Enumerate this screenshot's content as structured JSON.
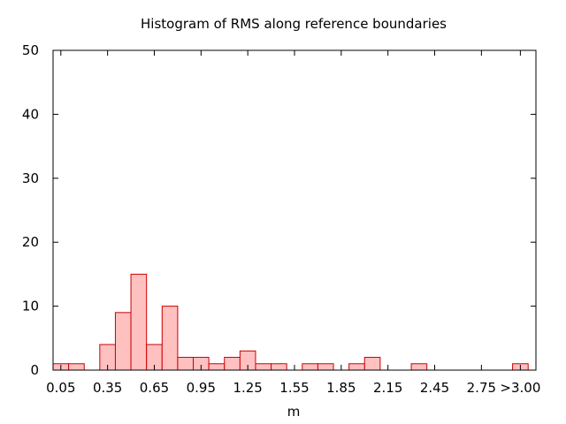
{
  "chart_data": {
    "type": "bar",
    "title": "Histogram of RMS along reference boundaries",
    "xlabel": "m",
    "ylabel": "",
    "ylim": [
      0,
      50
    ],
    "yticks": [
      0,
      10,
      20,
      30,
      40,
      50
    ],
    "xlim": [
      0,
      3.1
    ],
    "bin_width": 0.1,
    "xtick_values": [
      0.05,
      0.35,
      0.65,
      0.95,
      1.25,
      1.55,
      1.85,
      2.15,
      2.45,
      2.75,
      3.0
    ],
    "xtick_labels": [
      "0.05",
      "0.35",
      "0.65",
      "0.95",
      "1.25",
      "1.55",
      "1.85",
      "2.15",
      "2.45",
      "2.75",
      ">3.00"
    ],
    "bin_centers": [
      0.05,
      0.15,
      0.25,
      0.35,
      0.45,
      0.55,
      0.65,
      0.75,
      0.85,
      0.95,
      1.05,
      1.15,
      1.25,
      1.35,
      1.45,
      1.55,
      1.65,
      1.75,
      1.85,
      1.95,
      2.05,
      2.15,
      2.25,
      2.35,
      2.45,
      2.55,
      2.65,
      2.75,
      2.85,
      3.0
    ],
    "values": [
      1,
      1,
      0,
      4,
      9,
      15,
      4,
      10,
      2,
      2,
      1,
      2,
      3,
      1,
      1,
      0,
      1,
      1,
      0,
      1,
      2,
      0,
      0,
      1,
      0,
      0,
      0,
      0,
      0,
      1
    ],
    "grid": false,
    "bar_fill": "#ffc0c0",
    "bar_stroke": "#cc0000",
    "legend": "none"
  }
}
